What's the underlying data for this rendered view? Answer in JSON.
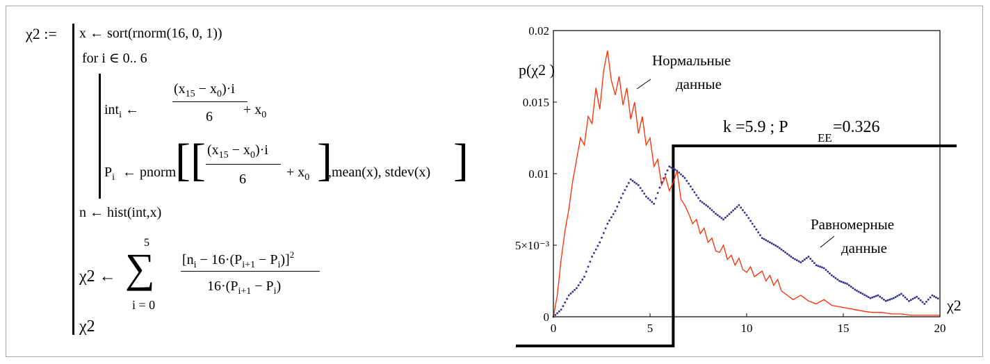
{
  "program": {
    "result_var": "χ2 :=",
    "line1": "x ← sort(rnorm(16, 0, 1))",
    "line_for": "for  i ∈ 0.. 6",
    "int_lhs": "int",
    "int_lhs_sub": "i",
    "arrow": "←",
    "frac_num": "(x",
    "frac_num_sub1": "15",
    "frac_num_mid": " − x",
    "frac_num_sub2": "0",
    "frac_num_end": ")·i",
    "frac_den": "6",
    "plus_x0": "+ x",
    "plus_x0_sub": "0",
    "p_lhs": "P",
    "p_lhs_sub": "i",
    "pnorm": "← pnorm",
    "pnorm_args": ",mean(x), stdev(x)",
    "line_hist": "n ← hist(int,x)",
    "chi_lhs": "χ2 ←",
    "sum_top": "5",
    "sum_symbol": "∑",
    "sum_bottom": "i = 0",
    "chi_num": "[n",
    "chi_num_sub": "i",
    "chi_num_mid": " − 16·(P",
    "chi_num_sub2": "i+1",
    "chi_num_mid2": " − P",
    "chi_num_sub3": "i",
    "chi_num_end": ")]",
    "chi_num_sup": "2",
    "chi_den": "16·(P",
    "chi_den_sub": "i+1",
    "chi_den_mid": " − P",
    "chi_den_sub2": "i",
    "chi_den_end": ")",
    "final": "χ2"
  },
  "chart_data": {
    "type": "line",
    "ylabel": "p(χ2 )",
    "xlabel": "χ2",
    "xlim": [
      0,
      20
    ],
    "ylim": [
      0,
      0.02
    ],
    "x_ticks": [
      "0",
      "5",
      "10",
      "15",
      "20"
    ],
    "y_ticks": [
      "0",
      "5×10⁻³",
      "0.01",
      "0.015",
      "0.02"
    ],
    "annotation_normal_1": "Нормальные",
    "annotation_normal_2": "данные",
    "annotation_uniform_1": "Равномерные",
    "annotation_uniform_2": "данные",
    "stat_k": "k =5.9 ;  P",
    "stat_sub": "EE",
    "stat_p": "=0.326",
    "threshold_x": 6.2,
    "series": [
      {
        "style": "solid",
        "color": "#ff2a00",
        "x": [
          0,
          0.2,
          0.4,
          0.6,
          0.8,
          1,
          1.2,
          1.4,
          1.6,
          1.8,
          2,
          2.2,
          2.4,
          2.6,
          2.8,
          3,
          3.2,
          3.4,
          3.6,
          3.8,
          4,
          4.2,
          4.4,
          4.6,
          4.8,
          5,
          5.2,
          5.4,
          5.6,
          5.8,
          6,
          6.2,
          6.4,
          6.6,
          6.8,
          7,
          7.2,
          7.4,
          7.6,
          7.8,
          8,
          8.2,
          8.4,
          8.6,
          8.8,
          9,
          9.2,
          9.4,
          9.6,
          9.8,
          10,
          10.2,
          10.4,
          10.6,
          10.8,
          11,
          11.2,
          11.4,
          11.6,
          11.8,
          12,
          12.4,
          12.8,
          13.2,
          13.6,
          14,
          14.4,
          14.8,
          15.2,
          15.6,
          16,
          16.5,
          17,
          17.5,
          18,
          18.5,
          19,
          19.5,
          20
        ],
        "y": [
          0,
          0.0015,
          0.004,
          0.006,
          0.0075,
          0.0095,
          0.011,
          0.0125,
          0.012,
          0.014,
          0.0135,
          0.016,
          0.0145,
          0.0172,
          0.0186,
          0.0165,
          0.0155,
          0.0168,
          0.0148,
          0.016,
          0.0138,
          0.015,
          0.0128,
          0.014,
          0.012,
          0.0125,
          0.0105,
          0.011,
          0.0092,
          0.0098,
          0.0088,
          0.0094,
          0.0102,
          0.0082,
          0.0078,
          0.0072,
          0.0065,
          0.0068,
          0.0058,
          0.0062,
          0.0052,
          0.0055,
          0.0046,
          0.0045,
          0.005,
          0.004,
          0.0043,
          0.0036,
          0.0041,
          0.0033,
          0.0031,
          0.0035,
          0.0028,
          0.003,
          0.0032,
          0.0025,
          0.0029,
          0.0022,
          0.0026,
          0.0018,
          0.0016,
          0.0012,
          0.0015,
          0.0011,
          0.0009,
          0.0012,
          0.0008,
          0.0007,
          0.0006,
          0.0005,
          0.0004,
          0.0003,
          0.0003,
          0.0002,
          0.0002,
          0.0001,
          0.0001,
          0.0001,
          0.0001
        ]
      },
      {
        "style": "dotted",
        "color": "#33338f",
        "x": [
          0,
          0.4,
          0.8,
          1.2,
          1.6,
          2,
          2.4,
          2.8,
          3.2,
          3.6,
          4,
          4.4,
          4.8,
          5.2,
          5.6,
          6,
          6.4,
          6.8,
          7.2,
          7.6,
          8,
          8.4,
          8.8,
          9.2,
          9.6,
          10,
          10.4,
          10.8,
          11.2,
          11.6,
          12,
          12.4,
          12.8,
          13.2,
          13.6,
          14,
          14.4,
          14.8,
          15.2,
          15.6,
          16,
          16.4,
          16.8,
          17.2,
          17.6,
          18,
          18.4,
          18.8,
          19.2,
          19.6,
          20
        ],
        "y": [
          0,
          0.0005,
          0.0015,
          0.002,
          0.0028,
          0.0042,
          0.0052,
          0.0065,
          0.0074,
          0.0086,
          0.0096,
          0.0092,
          0.0084,
          0.0079,
          0.0094,
          0.0105,
          0.0102,
          0.0097,
          0.0089,
          0.0081,
          0.0077,
          0.0072,
          0.0068,
          0.0073,
          0.0078,
          0.0071,
          0.0063,
          0.0055,
          0.0052,
          0.0049,
          0.0045,
          0.0041,
          0.0038,
          0.0042,
          0.0036,
          0.0034,
          0.0029,
          0.0025,
          0.0023,
          0.0019,
          0.0016,
          0.0013,
          0.0015,
          0.0011,
          0.0013,
          0.0016,
          0.0011,
          0.0014,
          0.0009,
          0.0015,
          0.0012
        ]
      }
    ]
  }
}
